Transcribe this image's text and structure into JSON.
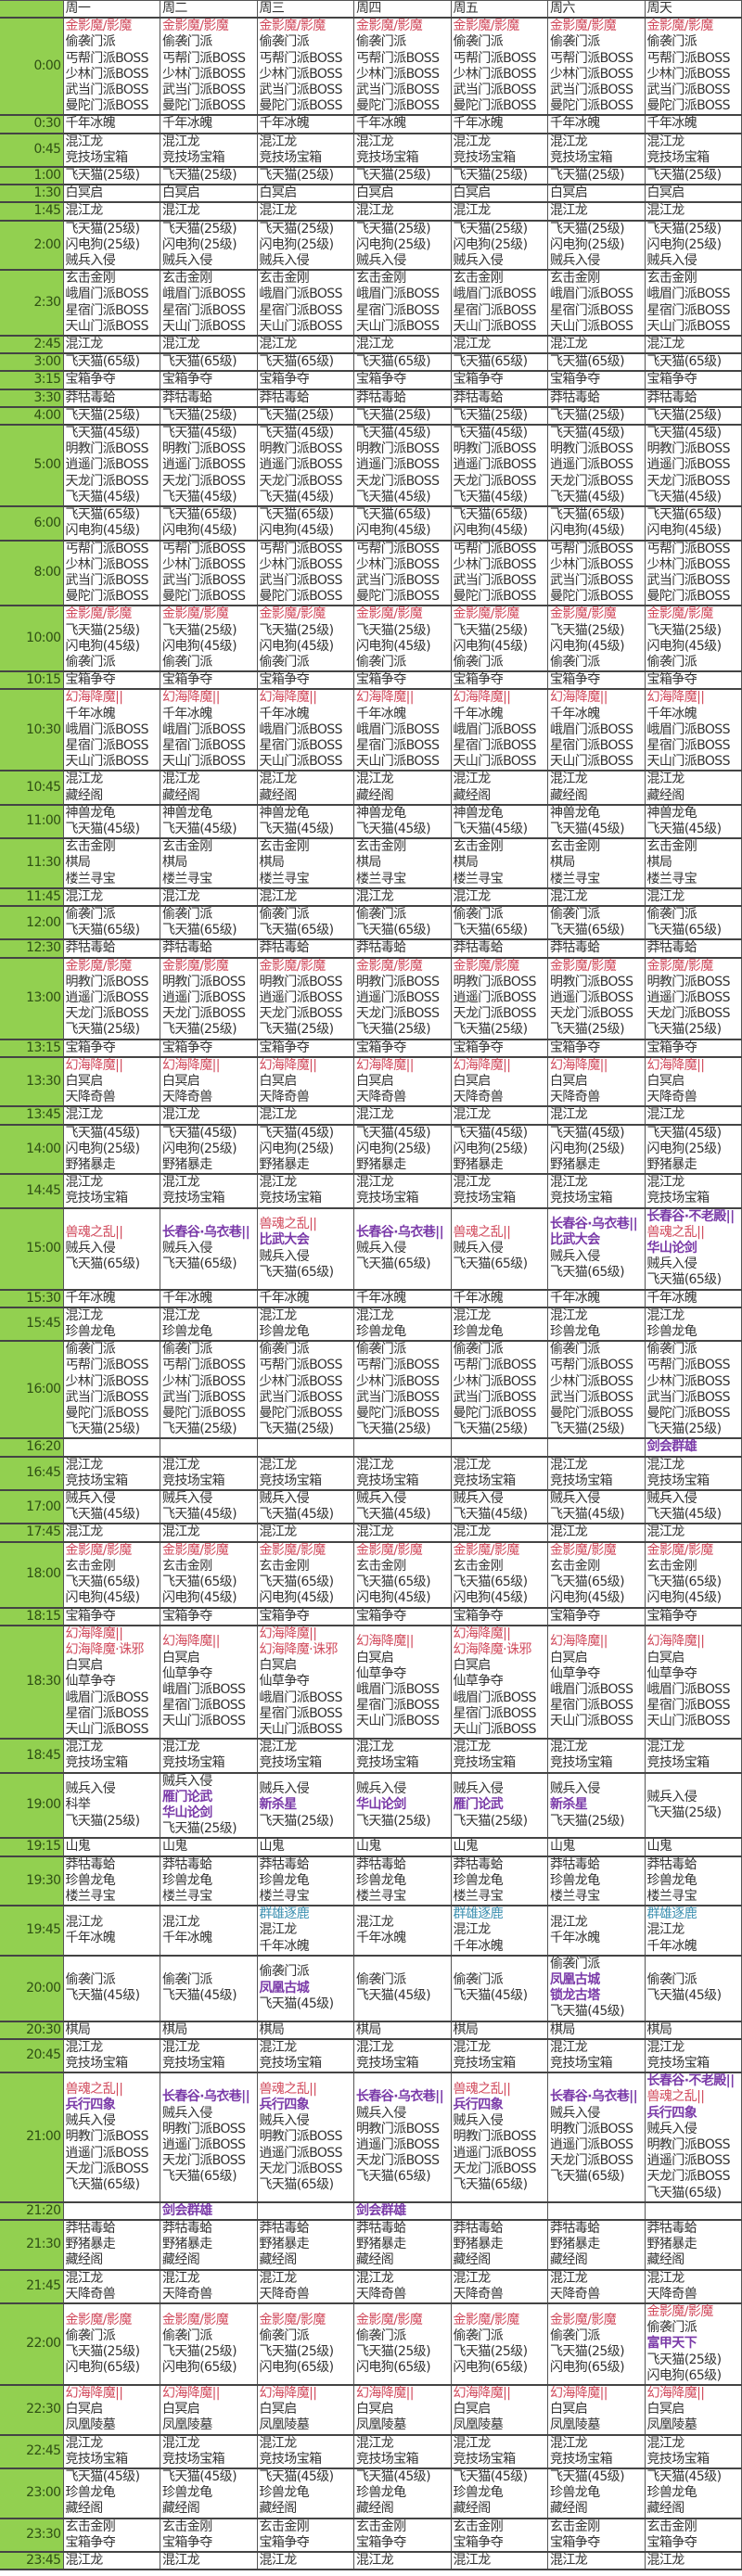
{
  "colors": {
    "time_column": "#92d050",
    "red": "#d14a5c",
    "purple": "#7a3aa8",
    "teal": "#3b8fb0"
  },
  "header": {
    "corner": "",
    "days": [
      "周一",
      "周二",
      "周三",
      "周四",
      "周五",
      "周六",
      "周天"
    ]
  },
  "rows": [
    {
      "time": "0:00",
      "all": [
        {
          "text": "金影魔/影魔",
          "color": "red"
        },
        "偷袭门派",
        "丐帮门派BOSS",
        "少林门派BOSS",
        "武当门派BOSS",
        "曼陀门派BOSS"
      ]
    },
    {
      "time": "0:30",
      "all": [
        "千年冰魄"
      ]
    },
    {
      "time": "0:45",
      "all": [
        "混江龙",
        "竞技场宝箱"
      ]
    },
    {
      "time": "1:00",
      "all": [
        "飞天猫(25级)"
      ]
    },
    {
      "time": "1:30",
      "all": [
        "白冥启"
      ]
    },
    {
      "time": "1:45",
      "all": [
        "混江龙"
      ]
    },
    {
      "time": "2:00",
      "all": [
        "飞天猫(25级)",
        "闪电狗(25级)",
        "贼兵入侵"
      ]
    },
    {
      "time": "2:30",
      "all": [
        "玄击金刚",
        "峨眉门派BOSS",
        "星宿门派BOSS",
        "天山门派BOSS"
      ]
    },
    {
      "time": "2:45",
      "all": [
        "混江龙"
      ]
    },
    {
      "time": "3:00",
      "all": [
        "飞天猫(65级)"
      ]
    },
    {
      "time": "3:15",
      "all": [
        "宝箱争夺"
      ]
    },
    {
      "time": "3:30",
      "all": [
        "莽牯毒蛤"
      ]
    },
    {
      "time": "4:00",
      "all": [
        "飞天猫(25级)"
      ]
    },
    {
      "time": "5:00",
      "all": [
        "飞天猫(45级)",
        "明教门派BOSS",
        "逍遥门派BOSS",
        "天龙门派BOSS",
        "飞天猫(45级)"
      ]
    },
    {
      "time": "6:00",
      "all": [
        "飞天猫(65级)",
        "闪电狗(45级)"
      ]
    },
    {
      "time": "8:00",
      "all": [
        "丐帮门派BOSS",
        "少林门派BOSS",
        "武当门派BOSS",
        "曼陀门派BOSS"
      ]
    },
    {
      "time": "10:00",
      "all": [
        {
          "text": "金影魔/影魔",
          "color": "red"
        },
        "飞天猫(25级)",
        "闪电狗(45级)",
        "偷袭门派"
      ]
    },
    {
      "time": "10:15",
      "all": [
        "宝箱争夺"
      ]
    },
    {
      "time": "10:30",
      "all": [
        {
          "text": "幻海降魔||",
          "color": "red"
        },
        "千年冰魄",
        "峨眉门派BOSS",
        "星宿门派BOSS",
        "天山门派BOSS"
      ]
    },
    {
      "time": "10:45",
      "all": [
        "混江龙",
        "藏经阁"
      ]
    },
    {
      "time": "11:00",
      "all": [
        "神兽龙龟",
        "飞天猫(45级)"
      ]
    },
    {
      "time": "11:30",
      "all": [
        "玄击金刚",
        "棋局",
        "楼兰寻宝"
      ]
    },
    {
      "time": "11:45",
      "all": [
        "混江龙"
      ]
    },
    {
      "time": "12:00",
      "all": [
        "偷袭门派",
        "飞天猫(65级)"
      ]
    },
    {
      "time": "12:30",
      "all": [
        "莽牯毒蛤"
      ]
    },
    {
      "time": "13:00",
      "all": [
        {
          "text": "金影魔/影魔",
          "color": "red"
        },
        "明教门派BOSS",
        "逍遥门派BOSS",
        "天龙门派BOSS",
        "飞天猫(25级)"
      ]
    },
    {
      "time": "13:15",
      "all": [
        "宝箱争夺"
      ]
    },
    {
      "time": "13:30",
      "all": [
        {
          "text": "幻海降魔||",
          "color": "red"
        },
        "白冥启",
        "天降奇兽"
      ]
    },
    {
      "time": "13:45",
      "all": [
        "混江龙"
      ]
    },
    {
      "time": "14:00",
      "all": [
        "飞天猫(45级)",
        "闪电狗(25级)",
        "野猪暴走"
      ]
    },
    {
      "time": "14:45",
      "all": [
        "混江龙",
        "竞技场宝箱"
      ]
    },
    {
      "time": "15:00",
      "days": [
        [
          {
            "text": "兽魂之乱||",
            "color": "red"
          },
          "贼兵入侵",
          "飞天猫(65级)"
        ],
        [
          {
            "text": "长春谷·乌衣巷||",
            "color": "purple"
          },
          "贼兵入侵",
          "飞天猫(65级)"
        ],
        [
          {
            "text": "兽魂之乱||",
            "color": "red"
          },
          {
            "text": "比武大会",
            "color": "purple"
          },
          "贼兵入侵",
          "飞天猫(65级)"
        ],
        [
          {
            "text": "长春谷·乌衣巷||",
            "color": "purple"
          },
          "贼兵入侵",
          "飞天猫(65级)"
        ],
        [
          {
            "text": "兽魂之乱||",
            "color": "red"
          },
          "贼兵入侵",
          "飞天猫(65级)"
        ],
        [
          {
            "text": "长春谷·乌衣巷||",
            "color": "purple"
          },
          {
            "text": "比武大会",
            "color": "purple"
          },
          "贼兵入侵",
          "飞天猫(65级)"
        ],
        [
          {
            "text": "长春谷·不老殿||",
            "color": "purple"
          },
          {
            "text": "兽魂之乱||",
            "color": "red"
          },
          {
            "text": "华山论剑",
            "color": "purple"
          },
          "贼兵入侵",
          "飞天猫(65级)"
        ]
      ]
    },
    {
      "time": "15:30",
      "all": [
        "千年冰魄"
      ]
    },
    {
      "time": "15:45",
      "all": [
        "混江龙",
        "珍兽龙龟"
      ]
    },
    {
      "time": "16:00",
      "all": [
        "偷袭门派",
        "丐帮门派BOSS",
        "少林门派BOSS",
        "武当门派BOSS",
        "曼陀门派BOSS",
        "飞天猫(25级)"
      ]
    },
    {
      "time": "16:20",
      "days": [
        [],
        [],
        [],
        [],
        [],
        [],
        [
          {
            "text": "剑会群雄",
            "color": "purple"
          }
        ]
      ]
    },
    {
      "time": "16:45",
      "all": [
        "混江龙",
        "竞技场宝箱"
      ]
    },
    {
      "time": "17:00",
      "all": [
        "贼兵入侵",
        "飞天猫(45级)"
      ]
    },
    {
      "time": "17:45",
      "all": [
        "混江龙"
      ]
    },
    {
      "time": "18:00",
      "all": [
        {
          "text": "金影魔/影魔",
          "color": "red"
        },
        "玄击金刚",
        "飞天猫(65级)",
        "闪电狗(45级)"
      ]
    },
    {
      "time": "18:15",
      "all": [
        "宝箱争夺"
      ]
    },
    {
      "time": "18:30",
      "days": [
        [
          {
            "text": "幻海降魔||",
            "color": "red"
          },
          {
            "text": "幻海降魔·诛邪",
            "color": "red"
          },
          "白冥启",
          "仙草争夺",
          "峨眉门派BOSS",
          "星宿门派BOSS",
          "天山门派BOSS"
        ],
        [
          {
            "text": "幻海降魔||",
            "color": "red"
          },
          "白冥启",
          "仙草争夺",
          "峨眉门派BOSS",
          "星宿门派BOSS",
          "天山门派BOSS"
        ],
        [
          {
            "text": "幻海降魔||",
            "color": "red"
          },
          {
            "text": "幻海降魔·诛邪",
            "color": "red"
          },
          "白冥启",
          "仙草争夺",
          "峨眉门派BOSS",
          "星宿门派BOSS",
          "天山门派BOSS"
        ],
        [
          {
            "text": "幻海降魔||",
            "color": "red"
          },
          "白冥启",
          "仙草争夺",
          "峨眉门派BOSS",
          "星宿门派BOSS",
          "天山门派BOSS"
        ],
        [
          {
            "text": "幻海降魔||",
            "color": "red"
          },
          {
            "text": "幻海降魔·诛邪",
            "color": "red"
          },
          "白冥启",
          "仙草争夺",
          "峨眉门派BOSS",
          "星宿门派BOSS",
          "天山门派BOSS"
        ],
        [
          {
            "text": "幻海降魔||",
            "color": "red"
          },
          "白冥启",
          "仙草争夺",
          "峨眉门派BOSS",
          "星宿门派BOSS",
          "天山门派BOSS"
        ],
        [
          {
            "text": "幻海降魔||",
            "color": "red"
          },
          "白冥启",
          "仙草争夺",
          "峨眉门派BOSS",
          "星宿门派BOSS",
          "天山门派BOSS"
        ]
      ]
    },
    {
      "time": "18:45",
      "all": [
        "混江龙",
        "竞技场宝箱"
      ]
    },
    {
      "time": "19:00",
      "days": [
        [
          "贼兵入侵",
          "科举",
          "飞天猫(25级)"
        ],
        [
          "贼兵入侵",
          {
            "text": "雁门论武",
            "color": "purple"
          },
          {
            "text": "华山论剑",
            "color": "purple"
          },
          "飞天猫(25级)"
        ],
        [
          "贼兵入侵",
          {
            "text": "新杀星",
            "color": "purple"
          },
          "飞天猫(25级)"
        ],
        [
          "贼兵入侵",
          {
            "text": "华山论剑",
            "color": "purple"
          },
          "飞天猫(25级)"
        ],
        [
          "贼兵入侵",
          {
            "text": "雁门论武",
            "color": "purple"
          },
          "飞天猫(25级)"
        ],
        [
          "贼兵入侵",
          {
            "text": "新杀星",
            "color": "purple"
          },
          "飞天猫(25级)"
        ],
        [
          "贼兵入侵",
          "飞天猫(25级)"
        ]
      ]
    },
    {
      "time": "19:15",
      "all": [
        "山鬼"
      ]
    },
    {
      "time": "19:30",
      "all": [
        "莽牯毒蛤",
        "珍兽龙龟",
        "楼兰寻宝"
      ]
    },
    {
      "time": "19:45",
      "days": [
        [
          "混江龙",
          "千年冰魄"
        ],
        [
          "混江龙",
          "千年冰魄"
        ],
        [
          {
            "text": "群雄逐鹿",
            "color": "teal"
          },
          "混江龙",
          "千年冰魄"
        ],
        [
          "混江龙",
          "千年冰魄"
        ],
        [
          {
            "text": "群雄逐鹿",
            "color": "teal"
          },
          "混江龙",
          "千年冰魄"
        ],
        [
          "混江龙",
          "千年冰魄"
        ],
        [
          {
            "text": "群雄逐鹿",
            "color": "teal"
          },
          "混江龙",
          "千年冰魄"
        ]
      ]
    },
    {
      "time": "20:00",
      "days": [
        [
          "偷袭门派",
          "飞天猫(45级)"
        ],
        [
          "偷袭门派",
          "飞天猫(45级)"
        ],
        [
          "偷袭门派",
          {
            "text": "凤凰古城",
            "color": "purple"
          },
          "飞天猫(45级)"
        ],
        [
          "偷袭门派",
          "飞天猫(45级)"
        ],
        [
          "偷袭门派",
          "飞天猫(45级)"
        ],
        [
          "偷袭门派",
          {
            "text": "凤凰古城",
            "color": "purple"
          },
          {
            "text": "锁龙古塔",
            "color": "purple"
          },
          "飞天猫(45级)"
        ],
        [
          "偷袭门派",
          "飞天猫(45级)"
        ]
      ]
    },
    {
      "time": "20:30",
      "all": [
        "棋局"
      ]
    },
    {
      "time": "20:45",
      "all": [
        "混江龙",
        "竞技场宝箱"
      ]
    },
    {
      "time": "21:00",
      "days": [
        [
          {
            "text": "兽魂之乱||",
            "color": "red"
          },
          {
            "text": "兵行四象",
            "color": "purple"
          },
          "贼兵入侵",
          "明教门派BOSS",
          "逍遥门派BOSS",
          "天龙门派BOSS",
          "飞天猫(65级)"
        ],
        [
          {
            "text": "长春谷·乌衣巷||",
            "color": "purple"
          },
          "贼兵入侵",
          "明教门派BOSS",
          "逍遥门派BOSS",
          "天龙门派BOSS",
          "飞天猫(65级)"
        ],
        [
          {
            "text": "兽魂之乱||",
            "color": "red"
          },
          {
            "text": "兵行四象",
            "color": "purple"
          },
          "贼兵入侵",
          "明教门派BOSS",
          "逍遥门派BOSS",
          "天龙门派BOSS",
          "飞天猫(65级)"
        ],
        [
          {
            "text": "长春谷·乌衣巷||",
            "color": "purple"
          },
          "贼兵入侵",
          "明教门派BOSS",
          "逍遥门派BOSS",
          "天龙门派BOSS",
          "飞天猫(65级)"
        ],
        [
          {
            "text": "兽魂之乱||",
            "color": "red"
          },
          {
            "text": "兵行四象",
            "color": "purple"
          },
          "贼兵入侵",
          "明教门派BOSS",
          "逍遥门派BOSS",
          "天龙门派BOSS",
          "飞天猫(65级)"
        ],
        [
          {
            "text": "长春谷·乌衣巷||",
            "color": "purple"
          },
          "贼兵入侵",
          "明教门派BOSS",
          "逍遥门派BOSS",
          "天龙门派BOSS",
          "飞天猫(65级)"
        ],
        [
          {
            "text": "长春谷·不老殿||",
            "color": "purple"
          },
          {
            "text": "兽魂之乱||",
            "color": "red"
          },
          {
            "text": "兵行四象",
            "color": "purple"
          },
          "贼兵入侵",
          "明教门派BOSS",
          "逍遥门派BOSS",
          "天龙门派BOSS",
          "飞天猫(65级)"
        ]
      ]
    },
    {
      "time": "21:20",
      "days": [
        [],
        [
          {
            "text": "剑会群雄",
            "color": "purple"
          }
        ],
        [],
        [
          {
            "text": "剑会群雄",
            "color": "purple"
          }
        ],
        [],
        [],
        []
      ]
    },
    {
      "time": "21:30",
      "all": [
        "莽牯毒蛤",
        "野猪暴走",
        "藏经阁"
      ]
    },
    {
      "time": "21:45",
      "all": [
        "混江龙",
        "天降奇兽"
      ]
    },
    {
      "time": "22:00",
      "days": [
        [
          {
            "text": "金影魔/影魔",
            "color": "red"
          },
          "偷袭门派",
          "飞天猫(25级)",
          "闪电狗(65级)"
        ],
        [
          {
            "text": "金影魔/影魔",
            "color": "red"
          },
          "偷袭门派",
          "飞天猫(25级)",
          "闪电狗(65级)"
        ],
        [
          {
            "text": "金影魔/影魔",
            "color": "red"
          },
          "偷袭门派",
          "飞天猫(25级)",
          "闪电狗(65级)"
        ],
        [
          {
            "text": "金影魔/影魔",
            "color": "red"
          },
          "偷袭门派",
          "飞天猫(25级)",
          "闪电狗(65级)"
        ],
        [
          {
            "text": "金影魔/影魔",
            "color": "red"
          },
          "偷袭门派",
          "飞天猫(25级)",
          "闪电狗(65级)"
        ],
        [
          {
            "text": "金影魔/影魔",
            "color": "red"
          },
          "偷袭门派",
          "飞天猫(25级)",
          "闪电狗(65级)"
        ],
        [
          {
            "text": "金影魔/影魔",
            "color": "red"
          },
          "偷袭门派",
          {
            "text": "富甲天下",
            "color": "purple"
          },
          "飞天猫(25级)",
          "闪电狗(65级)"
        ]
      ]
    },
    {
      "time": "22:30",
      "all": [
        {
          "text": "幻海降魔||",
          "color": "red"
        },
        "白冥启",
        "凤凰陵墓"
      ]
    },
    {
      "time": "22:45",
      "all": [
        "混江龙",
        "竞技场宝箱"
      ]
    },
    {
      "time": "23:00",
      "all": [
        "飞天猫(45级)",
        "珍兽龙龟",
        "藏经阁"
      ]
    },
    {
      "time": "23:30",
      "all": [
        "玄击金刚",
        "宝箱争夺"
      ]
    },
    {
      "time": "23:45",
      "all": [
        "混江龙"
      ]
    }
  ]
}
